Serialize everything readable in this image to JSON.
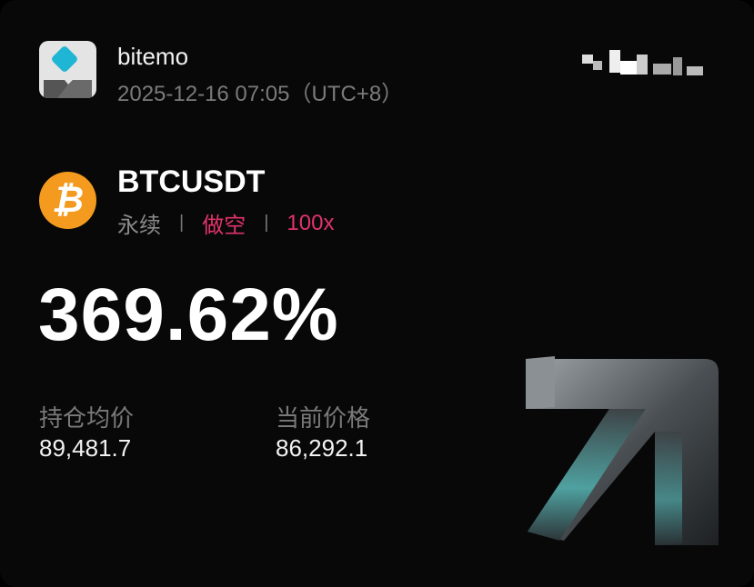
{
  "header": {
    "app_name": "bitemo",
    "timestamp": "2025-12-16 07:05（UTC+8）",
    "app_icon": "bitemo-logo-icon",
    "redacted": "pixelated-mosaic"
  },
  "position": {
    "symbol": "BTCUSDT",
    "coin_icon": "bitcoin-icon",
    "type": "永续",
    "direction": "做空",
    "leverage": "100x",
    "separator": "|",
    "pnl_percent": "369.62%",
    "entry_price_label": "持仓均价",
    "entry_price": "89,481.7",
    "current_price_label": "当前价格",
    "current_price": "86,292.1"
  },
  "colors": {
    "accent": "#e0336b",
    "bitcoin": "#f39a1f",
    "logo": "#1fb5d4"
  }
}
